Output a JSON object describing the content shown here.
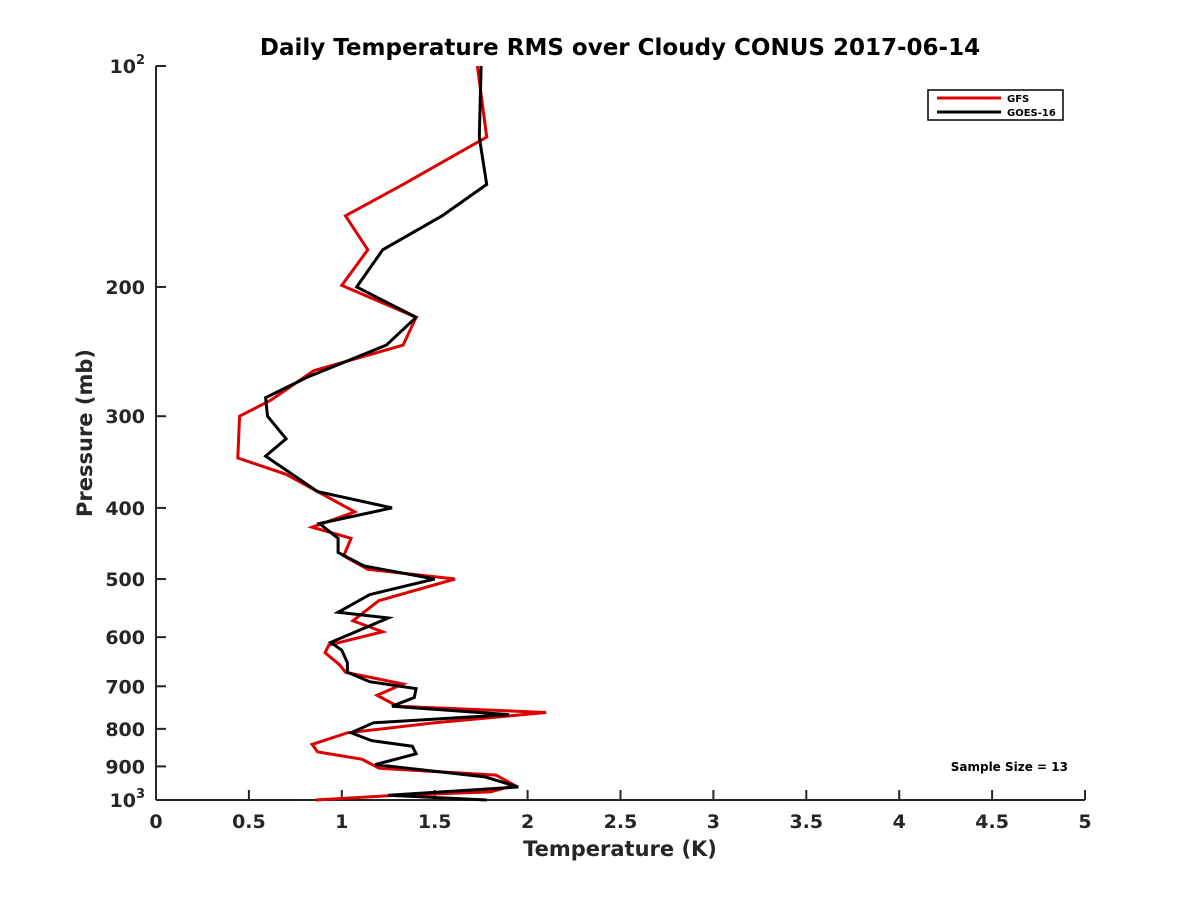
{
  "chart_data": {
    "type": "line",
    "title": "Daily Temperature RMS over Cloudy CONUS 2017-06-14",
    "xlabel": "Temperature (K)",
    "ylabel": "Pressure (mb)",
    "xlim": [
      0,
      5
    ],
    "ylim": [
      1000,
      100
    ],
    "yscale": "log",
    "y_reversed": true,
    "grid": false,
    "legend_position": "top-right",
    "x_ticks": [
      "0",
      "0.5",
      "1",
      "1.5",
      "2",
      "2.5",
      "3",
      "3.5",
      "4",
      "4.5",
      "5"
    ],
    "y_ticks": [
      {
        "value": 100,
        "base": "10",
        "exp": "2"
      },
      {
        "value": 200,
        "label": "200"
      },
      {
        "value": 300,
        "label": "300"
      },
      {
        "value": 400,
        "label": "400"
      },
      {
        "value": 500,
        "label": "500"
      },
      {
        "value": 600,
        "label": "600"
      },
      {
        "value": 700,
        "label": "700"
      },
      {
        "value": 800,
        "label": "800"
      },
      {
        "value": 900,
        "label": "900"
      },
      {
        "value": 1000,
        "base": "10",
        "exp": "3"
      }
    ],
    "annotation": "Sample Size = 13",
    "series": [
      {
        "name": "GFS",
        "color": "#dd0000",
        "x": [
          1.73,
          1.78,
          1.33,
          1.02,
          1.14,
          1.0,
          1.4,
          1.33,
          0.85,
          0.62,
          0.45,
          0.44,
          0.7,
          1.07,
          0.84,
          1.05,
          1.01,
          1.14,
          1.61,
          1.2,
          1.06,
          1.22,
          0.93,
          0.91,
          0.99,
          1.02,
          1.33,
          1.19,
          1.3,
          2.1,
          1.5,
          1.03,
          0.84,
          0.87,
          1.11,
          1.2,
          1.83,
          1.93,
          1.8,
          1.3,
          0.86
        ],
        "y": [
          100,
          125,
          145,
          160,
          178,
          199,
          220,
          240,
          260,
          285,
          300,
          342,
          360,
          405,
          425,
          440,
          465,
          485,
          500,
          535,
          570,
          590,
          615,
          630,
          655,
          670,
          695,
          720,
          745,
          760,
          785,
          810,
          840,
          860,
          880,
          905,
          925,
          955,
          975,
          985,
          1000
        ]
      },
      {
        "name": "GOES-16",
        "color": "#000000",
        "x": [
          1.75,
          1.74,
          1.78,
          1.54,
          1.22,
          1.08,
          1.4,
          1.24,
          0.82,
          0.59,
          0.6,
          0.7,
          0.59,
          0.87,
          1.27,
          0.88,
          0.98,
          0.98,
          1.12,
          1.5,
          1.15,
          0.98,
          1.25,
          0.94,
          1.0,
          1.03,
          1.03,
          1.15,
          1.4,
          1.39,
          1.27,
          1.9,
          1.17,
          1.05,
          1.16,
          1.38,
          1.4,
          1.18,
          1.77,
          1.95,
          1.25,
          1.78
        ],
        "y": [
          100,
          125,
          145,
          160,
          178,
          200,
          220,
          240,
          265,
          283,
          300,
          322,
          340,
          380,
          400,
          420,
          440,
          460,
          480,
          500,
          525,
          555,
          565,
          610,
          625,
          650,
          670,
          690,
          705,
          725,
          745,
          765,
          785,
          810,
          830,
          845,
          865,
          895,
          930,
          960,
          985,
          1000
        ]
      }
    ]
  }
}
